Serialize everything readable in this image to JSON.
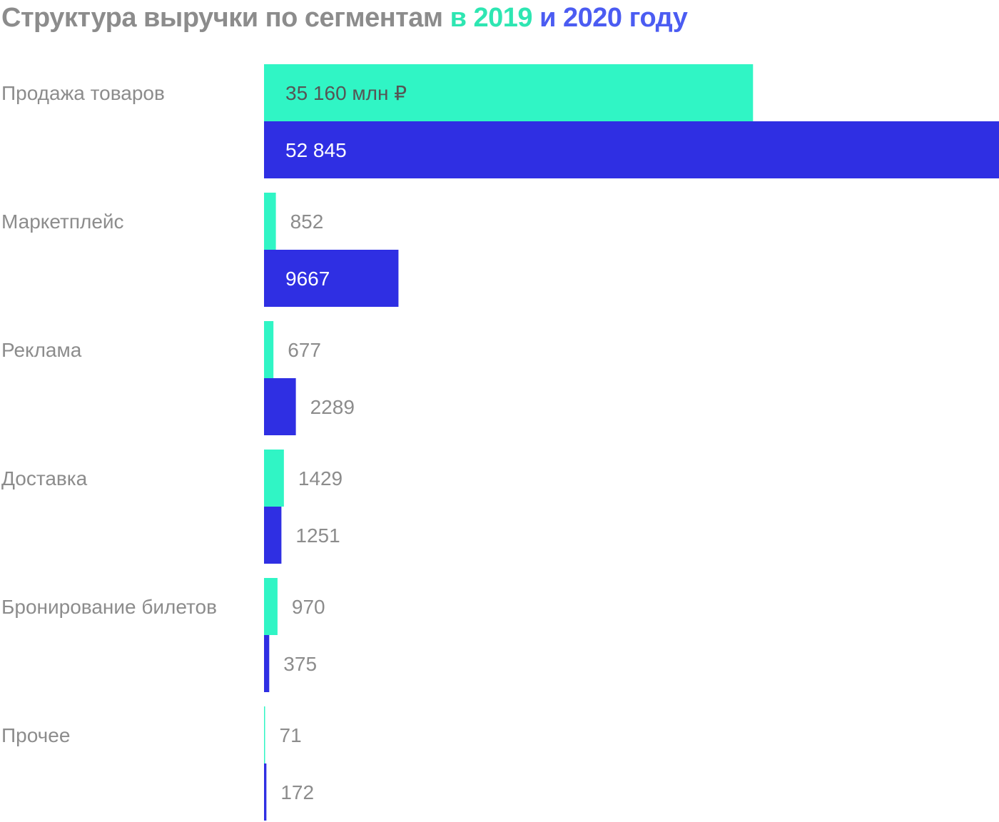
{
  "title": {
    "part1": "Структура выручки по сегментам",
    "part2": "в 2019",
    "part3": "и 2020 году"
  },
  "colors": {
    "series_2019": "#30f5c5",
    "series_2020": "#2f2fe3",
    "title_gray": "#8c8c8c",
    "title_green": "#2ee6b2",
    "title_blue": "#4b5cf2",
    "label_gray": "#8c8c8c"
  },
  "chart_data": {
    "type": "bar",
    "orientation": "horizontal",
    "title": "Структура выручки по сегментам в 2019 и 2020 году",
    "unit": "млн ₽",
    "categories": [
      "Продажа товаров",
      "Маркетплейс",
      "Реклама",
      "Доставка",
      "Бронирование билетов",
      "Прочее"
    ],
    "series": [
      {
        "name": "2019",
        "values": [
          35160,
          852,
          677,
          1429,
          970,
          71
        ],
        "labels": [
          "35 160 млн ₽",
          "852",
          "677",
          "1429",
          "970",
          "71"
        ]
      },
      {
        "name": "2020",
        "values": [
          52845,
          9667,
          2289,
          1251,
          375,
          172
        ],
        "labels": [
          "52 845",
          "9667",
          "2289",
          "1251",
          "375",
          "172"
        ]
      }
    ],
    "grid": false,
    "legend": "in title"
  }
}
